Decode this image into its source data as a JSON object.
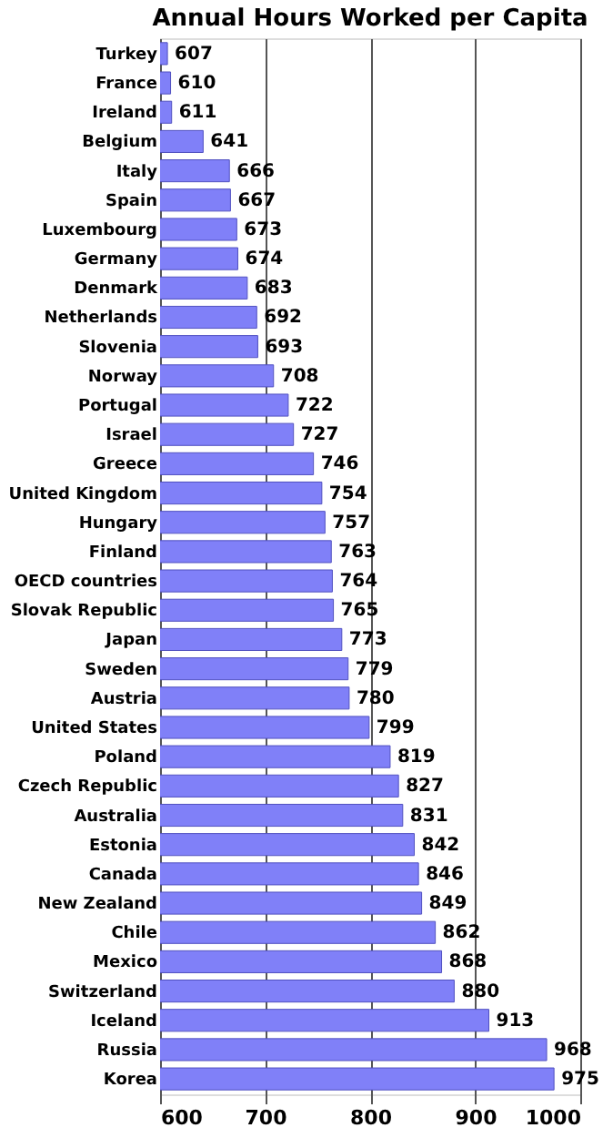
{
  "chart_data": {
    "type": "bar",
    "orientation": "horizontal",
    "title": "Annual Hours Worked per Capita",
    "categories": [
      "Turkey",
      "France",
      "Ireland",
      "Belgium",
      "Italy",
      "Spain",
      "Luxembourg",
      "Germany",
      "Denmark",
      "Netherlands",
      "Slovenia",
      "Norway",
      "Portugal",
      "Israel",
      "Greece",
      "United Kingdom",
      "Hungary",
      "Finland",
      "OECD countries",
      "Slovak Republic",
      "Japan",
      "Sweden",
      "Austria",
      "United States",
      "Poland",
      "Czech Republic",
      "Australia",
      "Estonia",
      "Canada",
      "New Zealand",
      "Chile",
      "Mexico",
      "Switzerland",
      "Iceland",
      "Russia",
      "Korea"
    ],
    "values": [
      607,
      610,
      611,
      641,
      666,
      667,
      673,
      674,
      683,
      692,
      693,
      708,
      722,
      727,
      746,
      754,
      757,
      763,
      764,
      765,
      773,
      779,
      780,
      799,
      819,
      827,
      831,
      842,
      846,
      849,
      862,
      868,
      880,
      913,
      968,
      975
    ],
    "color": "#8080f8",
    "xlim": [
      600,
      1000
    ],
    "xticks": [
      600,
      700,
      800,
      900,
      1000
    ],
    "grid": "x",
    "data_labels": true
  }
}
